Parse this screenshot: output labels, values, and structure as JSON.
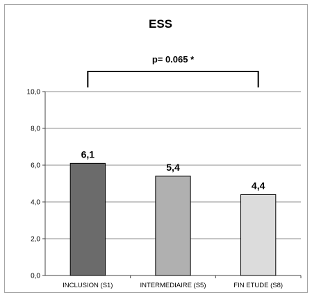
{
  "chart_data": {
    "type": "bar",
    "title": "ESS",
    "categories": [
      "INCLUSION (S1)",
      "INTERMEDIAIRE (S5)",
      "FIN ETUDE (S8)"
    ],
    "values": [
      6.1,
      5.4,
      4.4
    ],
    "data_labels": [
      "6,1",
      "5,4",
      "4,4"
    ],
    "bar_colors": [
      "#6b6b6b",
      "#b0b0b0",
      "#dcdcdc"
    ],
    "ylim": [
      0,
      10
    ],
    "yticks": [
      0,
      2,
      4,
      6,
      8,
      10
    ],
    "ytick_labels": [
      "0,0",
      "2,0",
      "4,0",
      "6,0",
      "8,0",
      "10,0"
    ],
    "grid": true,
    "annotation": {
      "text": "p= 0.065  *",
      "from_category": 0,
      "to_category": 2
    },
    "xlabel": "",
    "ylabel": ""
  }
}
